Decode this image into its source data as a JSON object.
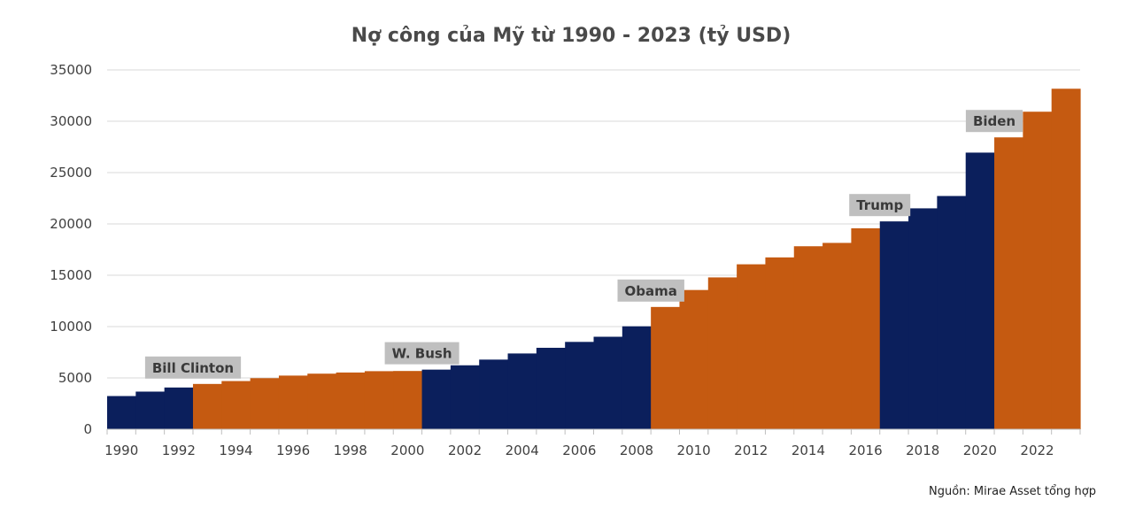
{
  "chart_data": {
    "type": "bar",
    "title": "Nợ công của Mỹ từ 1990 - 2023 (tỷ USD)",
    "source": "Nguồn: Mirae Asset tổng hợp",
    "ylim": [
      0,
      35000
    ],
    "yticks": [
      0,
      5000,
      10000,
      15000,
      20000,
      25000,
      30000,
      35000
    ],
    "xticks": [
      "1990",
      "1992",
      "1994",
      "1996",
      "1998",
      "2000",
      "2002",
      "2004",
      "2006",
      "2008",
      "2010",
      "2012",
      "2014",
      "2016",
      "2018",
      "2020",
      "2022"
    ],
    "grid": true,
    "categories": [
      "1990",
      "1991",
      "1992",
      "1993",
      "1994",
      "1995",
      "1996",
      "1997",
      "1998",
      "1999",
      "2000",
      "2001",
      "2002",
      "2003",
      "2004",
      "2005",
      "2006",
      "2007",
      "2008",
      "2009",
      "2010",
      "2011",
      "2012",
      "2013",
      "2014",
      "2015",
      "2016",
      "2017",
      "2018",
      "2019",
      "2020",
      "2021",
      "2022",
      "2023"
    ],
    "values": [
      3233,
      3665,
      4065,
      4411,
      4693,
      4974,
      5225,
      5413,
      5526,
      5656,
      5674,
      5807,
      6228,
      6783,
      7379,
      7933,
      8507,
      9008,
      10025,
      11910,
      13562,
      14790,
      16066,
      16738,
      17824,
      18151,
      19573,
      20245,
      21516,
      22719,
      26945,
      28429,
      30929,
      33167
    ],
    "colors": {
      "blue": "#0b1f5c",
      "orange": "#c55a11",
      "label_bg": "#bfbfbf",
      "grid": "#d9d9d9"
    },
    "administrations": [
      {
        "name": "Bill Clinton",
        "start": 1993,
        "end": 2000,
        "color": "orange",
        "label_at": 1992
      },
      {
        "name": "W. Bush",
        "start": 2001,
        "end": 2008,
        "color": "blue",
        "label_at": 2000
      },
      {
        "name": "Obama",
        "start": 2009,
        "end": 2016,
        "color": "orange",
        "label_at": 2008
      },
      {
        "name": "Trump",
        "start": 2017,
        "end": 2020,
        "color": "blue",
        "label_at": 2016
      },
      {
        "name": "Biden",
        "start": 2021,
        "end": 2023,
        "color": "orange",
        "label_at": 2020
      }
    ]
  }
}
